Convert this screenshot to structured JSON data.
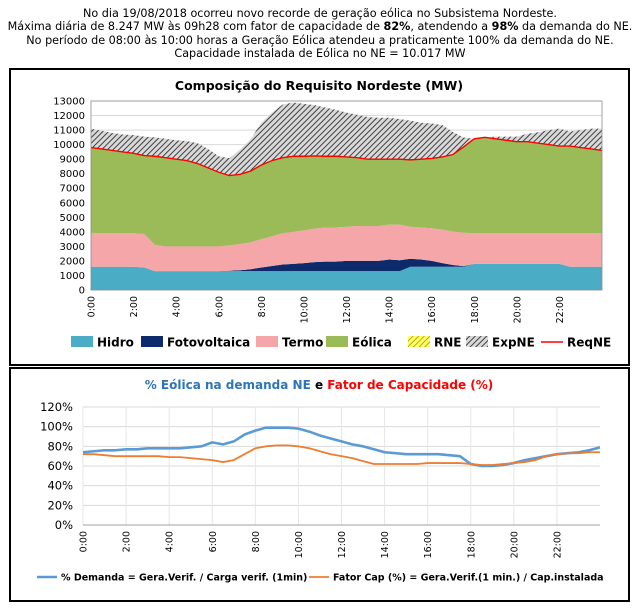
{
  "header": {
    "line1": "No dia 19/08/2018 ocorreu novo recorde de geração eólica no Subsistema Nordeste.",
    "line2_a": "Máxima diária de 8.247 MW às 09h28 com fator de capacidade de ",
    "line2_b": "82%",
    "line2_c": ", atendendo a ",
    "line2_d": "98%",
    "line2_e": " da demanda do NE.",
    "line3": "No período de 08:00 às 10:00 horas a Geração Eólica atendeu a praticamente 100% da demanda do NE.",
    "line4": "Capacidade instalada de Eólica no NE = 10.017 MW"
  },
  "chart_data": [
    {
      "type": "area",
      "title": "Composição do Requisito Nordeste (MW)",
      "xlabel": "",
      "ylabel": "",
      "ylim": [
        0,
        13000
      ],
      "yticks": [
        0,
        1000,
        2000,
        3000,
        4000,
        5000,
        6000,
        7000,
        8000,
        9000,
        10000,
        11000,
        12000,
        13000
      ],
      "ytick_labels": [
        "0",
        "1000",
        "2000",
        "3000",
        "4000",
        "5000",
        "6000",
        "7000",
        "8000",
        "9000",
        "10000",
        "11000",
        "12000",
        "13000"
      ],
      "x_hours": [
        0,
        0.5,
        1,
        1.5,
        2,
        2.5,
        3,
        3.5,
        4,
        4.5,
        5,
        5.5,
        6,
        6.5,
        7,
        7.5,
        8,
        8.5,
        9,
        9.5,
        10,
        10.5,
        11,
        11.5,
        12,
        12.5,
        13,
        13.5,
        14,
        14.5,
        15,
        15.5,
        16,
        16.5,
        17,
        17.5,
        18,
        18.5,
        19,
        19.5,
        20,
        20.5,
        21,
        21.5,
        22,
        22.5,
        23,
        23.5,
        24
      ],
      "xtick_labels": [
        "0:00",
        "2:00",
        "4:00",
        "6:00",
        "8:00",
        "10:00",
        "12:00",
        "14:00",
        "16:00",
        "18:00",
        "20:00",
        "22:00"
      ],
      "xtick_hours": [
        0,
        2,
        4,
        6,
        8,
        10,
        12,
        14,
        16,
        18,
        20,
        22
      ],
      "series": [
        {
          "name": "Hidro",
          "color": "#4bacc6",
          "values": [
            1600,
            1600,
            1600,
            1600,
            1600,
            1550,
            1300,
            1300,
            1300,
            1300,
            1300,
            1300,
            1300,
            1300,
            1300,
            1300,
            1300,
            1300,
            1300,
            1300,
            1300,
            1300,
            1300,
            1300,
            1300,
            1300,
            1300,
            1300,
            1300,
            1300,
            1600,
            1600,
            1600,
            1600,
            1600,
            1600,
            1800,
            1800,
            1800,
            1800,
            1800,
            1800,
            1800,
            1800,
            1800,
            1600,
            1600,
            1600,
            1600
          ]
        },
        {
          "name": "Fotovoltaica",
          "color": "#0d2a6b",
          "values": [
            0,
            0,
            0,
            0,
            0,
            0,
            0,
            0,
            0,
            0,
            0,
            0,
            0,
            20,
            60,
            130,
            250,
            350,
            450,
            500,
            550,
            620,
            650,
            650,
            700,
            700,
            700,
            700,
            800,
            750,
            550,
            500,
            400,
            250,
            120,
            40,
            0,
            0,
            0,
            0,
            0,
            0,
            0,
            0,
            0,
            0,
            0,
            0,
            0
          ]
        },
        {
          "name": "Termo",
          "color": "#f4a6a8",
          "values": [
            2300,
            2300,
            2300,
            2300,
            2300,
            2300,
            1800,
            1700,
            1700,
            1700,
            1700,
            1700,
            1700,
            1750,
            1800,
            1850,
            1950,
            2050,
            2150,
            2200,
            2250,
            2300,
            2350,
            2350,
            2350,
            2400,
            2400,
            2400,
            2400,
            2450,
            2200,
            2200,
            2250,
            2300,
            2300,
            2300,
            2100,
            2100,
            2100,
            2100,
            2100,
            2100,
            2100,
            2100,
            2100,
            2300,
            2300,
            2300,
            2300
          ]
        },
        {
          "name": "Eólica",
          "color": "#9bbb59",
          "values": [
            5900,
            5800,
            5700,
            5600,
            5500,
            5400,
            6100,
            6100,
            6000,
            5900,
            5700,
            5400,
            5100,
            4800,
            4800,
            4900,
            5100,
            5200,
            5200,
            5200,
            5100,
            5000,
            4900,
            4900,
            4800,
            4700,
            4600,
            4600,
            4500,
            4500,
            4600,
            4700,
            4800,
            5000,
            5300,
            5900,
            6500,
            6600,
            6500,
            6400,
            6300,
            6300,
            6200,
            6100,
            6000,
            6000,
            5900,
            5800,
            5700
          ]
        },
        {
          "name": "RNE",
          "color": "#ffff66",
          "values": [
            0,
            0,
            0,
            0,
            0,
            0,
            0,
            0,
            0,
            0,
            0,
            0,
            0,
            0,
            0,
            0,
            0,
            0,
            0,
            0,
            0,
            0,
            0,
            0,
            0,
            0,
            0,
            0,
            0,
            0,
            0,
            0,
            0,
            0,
            0,
            0,
            0,
            0,
            0,
            0,
            0,
            0,
            0,
            0,
            0,
            0,
            0,
            0,
            0
          ]
        },
        {
          "name": "ExpNE",
          "color": "#808080",
          "values": [
            1300,
            1250,
            1200,
            1200,
            1250,
            1300,
            1300,
            1300,
            1300,
            1350,
            1400,
            1300,
            1100,
            1200,
            1700,
            2200,
            2900,
            3300,
            3650,
            3700,
            3600,
            3500,
            3350,
            3200,
            3050,
            2950,
            2900,
            2850,
            2850,
            2750,
            2700,
            2500,
            2400,
            2200,
            1550,
            650,
            0,
            0,
            150,
            250,
            350,
            550,
            750,
            1000,
            1200,
            1000,
            1200,
            1400,
            1500
          ]
        }
      ],
      "req_line": {
        "name": "ReqNE",
        "color": "#ff0000",
        "values": [
          9800,
          9700,
          9600,
          9500,
          9400,
          9250,
          9200,
          9100,
          9000,
          8900,
          8700,
          8400,
          8100,
          7870,
          7960,
          8180,
          8600,
          8900,
          9100,
          9200,
          9200,
          9220,
          9200,
          9200,
          9150,
          9100,
          9000,
          9000,
          9000,
          9000,
          8950,
          9000,
          9050,
          9150,
          9320,
          9840,
          10400,
          10500,
          10400,
          10300,
          10200,
          10200,
          10100,
          10000,
          9900,
          9900,
          9800,
          9700,
          9600
        ]
      },
      "legend": [
        "Hidro",
        "Fotovoltaica",
        "Termo",
        "Eólica",
        "RNE",
        "ExpNE",
        "ReqNE"
      ]
    },
    {
      "type": "line",
      "title_a": "% Eólica na demanda NE",
      "title_b": " e ",
      "title_c": "Fator de Capacidade (%)",
      "xlabel": "",
      "ylabel": "",
      "ylim": [
        0,
        120
      ],
      "yticks": [
        0,
        20,
        40,
        60,
        80,
        100,
        120
      ],
      "ytick_labels": [
        "0%",
        "20%",
        "40%",
        "60%",
        "80%",
        "100%",
        "120%"
      ],
      "x_hours": [
        0,
        0.5,
        1,
        1.5,
        2,
        2.5,
        3,
        3.5,
        4,
        4.5,
        5,
        5.5,
        6,
        6.5,
        7,
        7.5,
        8,
        8.5,
        9,
        9.5,
        10,
        10.5,
        11,
        11.5,
        12,
        12.5,
        13,
        13.5,
        14,
        14.5,
        15,
        15.5,
        16,
        16.5,
        17,
        17.5,
        18,
        18.5,
        19,
        19.5,
        20,
        20.5,
        21,
        21.5,
        22,
        22.5,
        23,
        23.5,
        24
      ],
      "xtick_labels": [
        "0:00",
        "2:00",
        "4:00",
        "6:00",
        "8:00",
        "10:00",
        "12:00",
        "14:00",
        "16:00",
        "18:00",
        "20:00",
        "22:00"
      ],
      "xtick_hours": [
        0,
        2,
        4,
        6,
        8,
        10,
        12,
        14,
        16,
        18,
        20,
        22
      ],
      "series": [
        {
          "name": "% Demanda = Gera.Verif. / Carga verif. (1min)",
          "color": "#5b9bd5",
          "values": [
            74,
            75,
            76,
            76,
            77,
            77,
            78,
            78,
            78,
            78,
            79,
            80,
            84,
            82,
            85,
            92,
            96,
            99,
            99,
            99,
            98,
            95,
            91,
            88,
            85,
            82,
            80,
            77,
            74,
            73,
            72,
            72,
            72,
            72,
            71,
            70,
            62,
            60,
            60,
            61,
            63,
            66,
            68,
            70,
            72,
            73,
            74,
            76,
            79
          ]
        },
        {
          "name": "Fator Cap (%) = Gera.Verif.(1 min.) / Cap.instalada",
          "color": "#ed7d31",
          "values": [
            72,
            72,
            71,
            70,
            70,
            70,
            70,
            70,
            69,
            69,
            68,
            67,
            66,
            64,
            66,
            72,
            78,
            80,
            81,
            81,
            80,
            78,
            75,
            72,
            70,
            68,
            65,
            62,
            62,
            62,
            62,
            62,
            63,
            63,
            63,
            63,
            62,
            61,
            61,
            62,
            63,
            64,
            66,
            70,
            72,
            73,
            73,
            74,
            74
          ]
        }
      ]
    }
  ]
}
